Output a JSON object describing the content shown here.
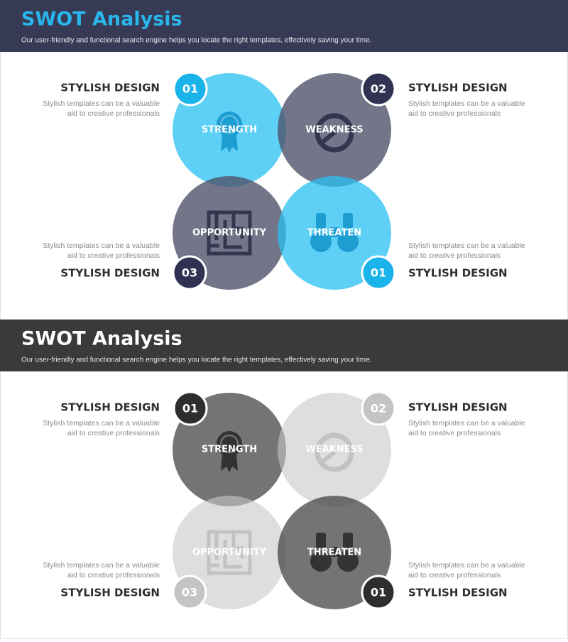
{
  "panels": [
    {
      "title": "SWOT Analysis",
      "subtitle": "Our user-friendly and functional search engine helps you locate the right templates, effectively saving your time.",
      "quadrants": [
        {
          "number": "01",
          "label": "STRENGTH",
          "heading": "STYLISH DESIGN",
          "text": [
            "Stylish templates can be a valuable",
            "aid to creative professionals"
          ]
        },
        {
          "number": "02",
          "label": "WEAKNESS",
          "heading": "STYLISH DESIGN",
          "text": [
            "Stylish templates can be a valuable",
            "aid to creative professionals"
          ]
        },
        {
          "number": "03",
          "label": "OPPORTUNITY",
          "heading": "STYLISH DESIGN",
          "text": [
            "Stylish templates can be a valuable",
            "aid to creative professionals"
          ]
        },
        {
          "number": "01",
          "label": "THREATEN",
          "heading": "STYLISH DESIGN",
          "text": [
            "Stylish templates can be a valuable",
            "aid to creative professionals"
          ]
        }
      ]
    },
    {
      "title": "SWOT Analysis",
      "subtitle": "Our user-friendly and functional search engine helps you locate the right templates, effectively saving your time.",
      "quadrants": [
        {
          "number": "01",
          "label": "STRENGTH",
          "heading": "STYLISH DESIGN",
          "text": [
            "Stylish templates can be a valuable",
            "aid to creative professionals"
          ]
        },
        {
          "number": "02",
          "label": "WEAKNESS",
          "heading": "STYLISH DESIGN",
          "text": [
            "Stylish templates can be a valuable",
            "aid to creative professionals"
          ]
        },
        {
          "number": "03",
          "label": "OPPORTUNITY",
          "heading": "STYLISH DESIGN",
          "text": [
            "Stylish templates can be a valuable",
            "aid to creative professionals"
          ]
        },
        {
          "number": "01",
          "label": "THREATEN",
          "heading": "STYLISH DESIGN",
          "text": [
            "Stylish templates can be a valuable",
            "aid to creative professionals"
          ]
        }
      ]
    }
  ]
}
